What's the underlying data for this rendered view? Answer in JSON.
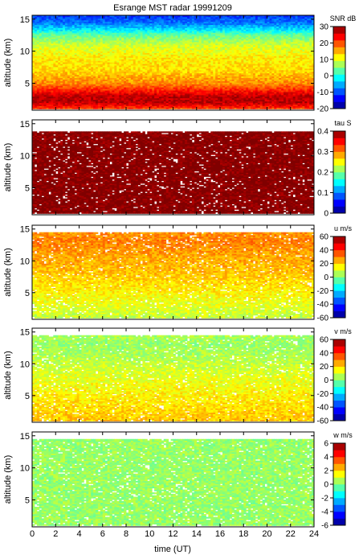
{
  "title": "Esrange MST radar 19991209",
  "xlabel": "time (UT)",
  "ylabel": "altitude (km)",
  "x_ticks": [
    0,
    2,
    4,
    6,
    8,
    10,
    12,
    14,
    16,
    18,
    20,
    22,
    24
  ],
  "y_ticks": [
    5,
    10,
    15
  ],
  "chart_data": [
    {
      "type": "heatmap",
      "colorbar_label": "SNR dB",
      "xlim": [
        0,
        24
      ],
      "ylim": [
        0.8,
        15.6
      ],
      "clim": [
        -20,
        30
      ],
      "colorbar_ticks": [
        -20,
        -10,
        0,
        10,
        20,
        30
      ],
      "profile": [
        {
          "alt": 1.0,
          "value": 20
        },
        {
          "alt": 2.0,
          "value": 27
        },
        {
          "alt": 3.0,
          "value": 27
        },
        {
          "alt": 4.0,
          "value": 22
        },
        {
          "alt": 5.0,
          "value": 17
        },
        {
          "alt": 7.0,
          "value": 13
        },
        {
          "alt": 9.0,
          "value": 12
        },
        {
          "alt": 11.0,
          "value": 9
        },
        {
          "alt": 12.5,
          "value": 4
        },
        {
          "alt": 13.5,
          "value": -3
        },
        {
          "alt": 14.5,
          "value": -8
        },
        {
          "alt": 15.6,
          "value": -11
        }
      ]
    },
    {
      "type": "heatmap",
      "colorbar_label": "tau S",
      "xlim": [
        0,
        24
      ],
      "ylim": [
        0.8,
        15.6
      ],
      "clim": [
        0,
        0.4
      ],
      "colorbar_ticks": [
        0,
        0.1,
        0.2,
        0.3,
        0.4
      ],
      "profile": [
        {
          "alt": 1.0,
          "value": 0.4
        },
        {
          "alt": 13.8,
          "value": 0.4
        }
      ]
    },
    {
      "type": "heatmap",
      "colorbar_label": "u m/s",
      "xlim": [
        0,
        24
      ],
      "ylim": [
        0.8,
        15.6
      ],
      "clim": [
        -60,
        60
      ],
      "colorbar_ticks": [
        -60,
        -40,
        -20,
        0,
        20,
        40,
        60
      ],
      "profile": [
        {
          "alt": 1.0,
          "value": 8
        },
        {
          "alt": 4.0,
          "value": 14
        },
        {
          "alt": 8.0,
          "value": 22
        },
        {
          "alt": 11.0,
          "value": 26
        },
        {
          "alt": 13.0,
          "value": 30
        },
        {
          "alt": 14.5,
          "value": 28
        }
      ]
    },
    {
      "type": "heatmap",
      "colorbar_label": "v m/s",
      "xlim": [
        0,
        24
      ],
      "ylim": [
        0.8,
        15.6
      ],
      "clim": [
        -60,
        60
      ],
      "colorbar_ticks": [
        -60,
        -40,
        -20,
        0,
        20,
        40,
        60
      ],
      "profile": [
        {
          "alt": 1.0,
          "value": 22
        },
        {
          "alt": 4.0,
          "value": 18
        },
        {
          "alt": 8.0,
          "value": 12
        },
        {
          "alt": 11.0,
          "value": 6
        },
        {
          "alt": 13.0,
          "value": 3
        },
        {
          "alt": 14.5,
          "value": 5
        }
      ]
    },
    {
      "type": "heatmap",
      "colorbar_label": "w m/s",
      "xlim": [
        0,
        24
      ],
      "ylim": [
        0.8,
        15.6
      ],
      "clim": [
        -6,
        6
      ],
      "colorbar_ticks": [
        -6,
        -4,
        -2,
        0,
        2,
        4,
        6
      ],
      "profile": [
        {
          "alt": 1.0,
          "value": 0.3
        },
        {
          "alt": 14.5,
          "value": 0.3
        }
      ]
    }
  ]
}
